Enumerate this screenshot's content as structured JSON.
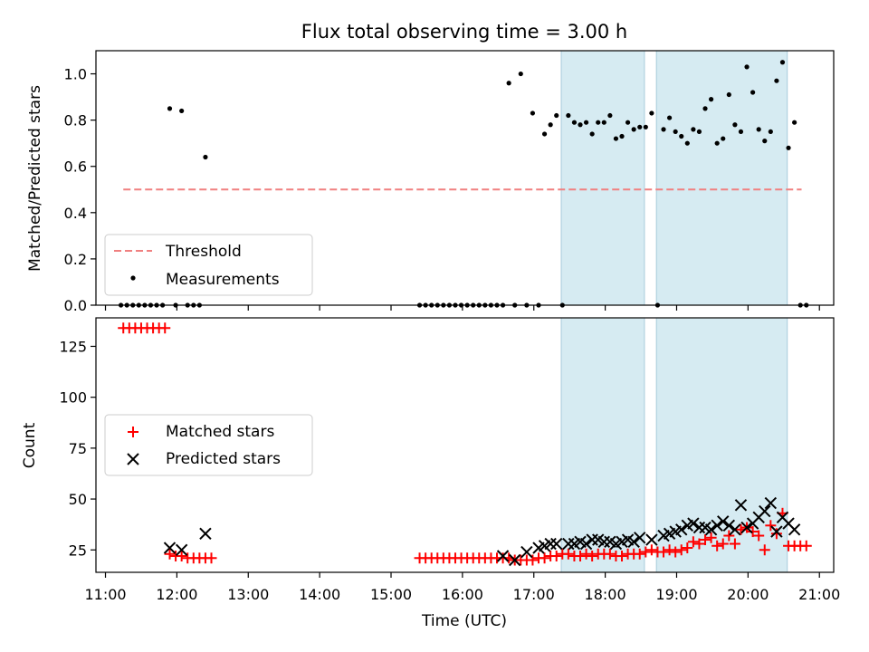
{
  "figure": {
    "title": "Flux total observing time = 3.00 h"
  },
  "chart_data": [
    {
      "type": "scatter",
      "panel": "top",
      "xlabel": "",
      "ylabel": "Matched/Predicted stars",
      "xlim": [
        "10:52",
        "21:12"
      ],
      "ylim": [
        0,
        1.1
      ],
      "yticks": [
        0.0,
        0.2,
        0.4,
        0.6,
        0.8,
        1.0
      ],
      "ytick_labels": [
        "0.0",
        "0.2",
        "0.4",
        "0.6",
        "0.8",
        "1.0"
      ],
      "grid": false,
      "legend": {
        "placement": "lower-left",
        "entries": [
          "Threshold",
          "Measurements"
        ]
      },
      "threshold": {
        "name": "Threshold",
        "value": 0.5,
        "x_start": "11:15",
        "x_end": "20:45",
        "color": "#f08080",
        "style": "dashed"
      },
      "shaded_spans": [
        {
          "start": "17:23",
          "end": "18:33"
        },
        {
          "start": "18:43",
          "end": "20:33"
        }
      ],
      "series": [
        {
          "name": "Measurements",
          "color": "#000000",
          "marker": "dot",
          "points": [
            [
              "11:13",
              0
            ],
            [
              "11:18",
              0
            ],
            [
              "11:23",
              0
            ],
            [
              "11:28",
              0
            ],
            [
              "11:33",
              0
            ],
            [
              "11:38",
              0
            ],
            [
              "11:43",
              0
            ],
            [
              "11:48",
              0
            ],
            [
              "11:54",
              0.85
            ],
            [
              "11:59",
              0
            ],
            [
              "12:04",
              0.84
            ],
            [
              "12:09",
              0
            ],
            [
              "12:14",
              0
            ],
            [
              "12:19",
              0
            ],
            [
              "12:24",
              0.64
            ],
            [
              "15:24",
              0
            ],
            [
              "15:29",
              0
            ],
            [
              "15:34",
              0
            ],
            [
              "15:39",
              0
            ],
            [
              "15:44",
              0
            ],
            [
              "15:49",
              0
            ],
            [
              "15:54",
              0
            ],
            [
              "15:59",
              0
            ],
            [
              "16:04",
              0
            ],
            [
              "16:09",
              0
            ],
            [
              "16:14",
              0
            ],
            [
              "16:19",
              0
            ],
            [
              "16:24",
              0
            ],
            [
              "16:29",
              0
            ],
            [
              "16:34",
              0
            ],
            [
              "16:39",
              0.96
            ],
            [
              "16:44",
              0
            ],
            [
              "16:49",
              1.0
            ],
            [
              "16:54",
              0
            ],
            [
              "16:59",
              0.83
            ],
            [
              "17:04",
              0
            ],
            [
              "17:09",
              0.74
            ],
            [
              "17:14",
              0.78
            ],
            [
              "17:19",
              0.82
            ],
            [
              "17:24",
              0
            ],
            [
              "17:29",
              0.82
            ],
            [
              "17:34",
              0.79
            ],
            [
              "17:39",
              0.78
            ],
            [
              "17:44",
              0.79
            ],
            [
              "17:49",
              0.74
            ],
            [
              "17:54",
              0.79
            ],
            [
              "17:59",
              0.79
            ],
            [
              "18:04",
              0.82
            ],
            [
              "18:09",
              0.72
            ],
            [
              "18:14",
              0.73
            ],
            [
              "18:19",
              0.79
            ],
            [
              "18:24",
              0.76
            ],
            [
              "18:29",
              0.77
            ],
            [
              "18:34",
              0.77
            ],
            [
              "18:39",
              0.83
            ],
            [
              "18:44",
              0
            ],
            [
              "18:49",
              0.76
            ],
            [
              "18:54",
              0.81
            ],
            [
              "18:59",
              0.75
            ],
            [
              "19:04",
              0.73
            ],
            [
              "19:09",
              0.7
            ],
            [
              "19:14",
              0.76
            ],
            [
              "19:19",
              0.75
            ],
            [
              "19:24",
              0.85
            ],
            [
              "19:29",
              0.89
            ],
            [
              "19:34",
              0.7
            ],
            [
              "19:39",
              0.72
            ],
            [
              "19:44",
              0.91
            ],
            [
              "19:49",
              0.78
            ],
            [
              "19:54",
              0.75
            ],
            [
              "19:59",
              1.03
            ],
            [
              "20:04",
              0.92
            ],
            [
              "20:09",
              0.76
            ],
            [
              "20:14",
              0.71
            ],
            [
              "20:19",
              0.75
            ],
            [
              "20:24",
              0.97
            ],
            [
              "20:29",
              1.05
            ],
            [
              "20:34",
              0.68
            ],
            [
              "20:39",
              0.79
            ],
            [
              "20:44",
              0
            ],
            [
              "20:49",
              0
            ]
          ]
        }
      ]
    },
    {
      "type": "scatter",
      "panel": "bottom",
      "xlabel": "Time (UTC)",
      "ylabel": "Count",
      "xlim": [
        "10:52",
        "21:12"
      ],
      "ylim": [
        14,
        139
      ],
      "xticks": [
        "11:00",
        "12:00",
        "13:00",
        "14:00",
        "15:00",
        "16:00",
        "17:00",
        "18:00",
        "19:00",
        "20:00",
        "21:00"
      ],
      "yticks": [
        25,
        50,
        75,
        100,
        125
      ],
      "ytick_labels": [
        "25",
        "50",
        "75",
        "100",
        "125"
      ],
      "grid": false,
      "legend": {
        "placement": "center-left",
        "entries": [
          "Matched stars",
          "Predicted stars"
        ]
      },
      "shaded_spans": [
        {
          "start": "17:23",
          "end": "18:33"
        },
        {
          "start": "18:43",
          "end": "20:33"
        }
      ],
      "series": [
        {
          "name": "Matched stars",
          "color": "#ff0000",
          "marker": "plus",
          "points": [
            [
              "11:15",
              134
            ],
            [
              "11:20",
              134
            ],
            [
              "11:25",
              134
            ],
            [
              "11:30",
              134
            ],
            [
              "11:35",
              134
            ],
            [
              "11:40",
              134
            ],
            [
              "11:45",
              134
            ],
            [
              "11:50",
              134
            ],
            [
              "11:54",
              23
            ],
            [
              "11:59",
              22
            ],
            [
              "12:04",
              22
            ],
            [
              "12:09",
              21
            ],
            [
              "12:14",
              21
            ],
            [
              "12:19",
              21
            ],
            [
              "12:24",
              21
            ],
            [
              "12:29",
              21
            ],
            [
              "15:24",
              21
            ],
            [
              "15:29",
              21
            ],
            [
              "15:34",
              21
            ],
            [
              "15:39",
              21
            ],
            [
              "15:44",
              21
            ],
            [
              "15:49",
              21
            ],
            [
              "15:54",
              21
            ],
            [
              "15:59",
              21
            ],
            [
              "16:04",
              21
            ],
            [
              "16:09",
              21
            ],
            [
              "16:14",
              21
            ],
            [
              "16:19",
              21
            ],
            [
              "16:24",
              21
            ],
            [
              "16:29",
              21
            ],
            [
              "16:34",
              21
            ],
            [
              "16:39",
              21
            ],
            [
              "16:44",
              20
            ],
            [
              "16:49",
              20
            ],
            [
              "16:54",
              20
            ],
            [
              "16:59",
              20
            ],
            [
              "17:04",
              21
            ],
            [
              "17:09",
              21
            ],
            [
              "17:14",
              22
            ],
            [
              "17:19",
              22
            ],
            [
              "17:24",
              23
            ],
            [
              "17:29",
              23
            ],
            [
              "17:34",
              22
            ],
            [
              "17:39",
              22
            ],
            [
              "17:44",
              23
            ],
            [
              "17:49",
              22
            ],
            [
              "17:54",
              23
            ],
            [
              "17:59",
              23
            ],
            [
              "18:04",
              23
            ],
            [
              "18:09",
              22
            ],
            [
              "18:14",
              22
            ],
            [
              "18:19",
              23
            ],
            [
              "18:24",
              23
            ],
            [
              "18:29",
              23
            ],
            [
              "18:34",
              24
            ],
            [
              "18:39",
              25
            ],
            [
              "18:44",
              24
            ],
            [
              "18:49",
              24
            ],
            [
              "18:54",
              25
            ],
            [
              "18:59",
              24
            ],
            [
              "19:04",
              25
            ],
            [
              "19:09",
              26
            ],
            [
              "19:14",
              29
            ],
            [
              "19:19",
              28
            ],
            [
              "19:24",
              30
            ],
            [
              "19:29",
              31
            ],
            [
              "19:34",
              27
            ],
            [
              "19:39",
              28
            ],
            [
              "19:44",
              32
            ],
            [
              "19:49",
              28
            ],
            [
              "19:54",
              35
            ],
            [
              "19:59",
              36
            ],
            [
              "20:04",
              34
            ],
            [
              "20:09",
              32
            ],
            [
              "20:14",
              25
            ],
            [
              "20:19",
              37
            ],
            [
              "20:24",
              33
            ],
            [
              "20:29",
              43
            ],
            [
              "20:34",
              27
            ],
            [
              "20:39",
              27
            ],
            [
              "20:44",
              27
            ],
            [
              "20:49",
              27
            ]
          ]
        },
        {
          "name": "Predicted stars",
          "color": "#000000",
          "marker": "x",
          "points": [
            [
              "11:54",
              26
            ],
            [
              "12:04",
              25
            ],
            [
              "12:24",
              33
            ],
            [
              "16:34",
              22
            ],
            [
              "16:44",
              20
            ],
            [
              "16:54",
              24
            ],
            [
              "17:04",
              26
            ],
            [
              "17:09",
              27
            ],
            [
              "17:14",
              28
            ],
            [
              "17:19",
              28
            ],
            [
              "17:29",
              28
            ],
            [
              "17:34",
              28
            ],
            [
              "17:39",
              29
            ],
            [
              "17:44",
              28
            ],
            [
              "17:49",
              30
            ],
            [
              "17:54",
              30
            ],
            [
              "17:59",
              29
            ],
            [
              "18:04",
              29
            ],
            [
              "18:09",
              28
            ],
            [
              "18:14",
              29
            ],
            [
              "18:19",
              30
            ],
            [
              "18:24",
              29
            ],
            [
              "18:29",
              31
            ],
            [
              "18:39",
              30
            ],
            [
              "18:49",
              32
            ],
            [
              "18:54",
              33
            ],
            [
              "18:59",
              34
            ],
            [
              "19:04",
              35
            ],
            [
              "19:09",
              37
            ],
            [
              "19:14",
              38
            ],
            [
              "19:19",
              36
            ],
            [
              "19:24",
              36
            ],
            [
              "19:29",
              35
            ],
            [
              "19:34",
              37
            ],
            [
              "19:39",
              39
            ],
            [
              "19:44",
              37
            ],
            [
              "19:49",
              35
            ],
            [
              "19:54",
              47
            ],
            [
              "19:59",
              36
            ],
            [
              "20:04",
              38
            ],
            [
              "20:09",
              41
            ],
            [
              "20:14",
              44
            ],
            [
              "20:19",
              48
            ],
            [
              "20:24",
              34
            ],
            [
              "20:29",
              41
            ],
            [
              "20:34",
              38
            ],
            [
              "20:39",
              35
            ]
          ]
        }
      ]
    }
  ]
}
